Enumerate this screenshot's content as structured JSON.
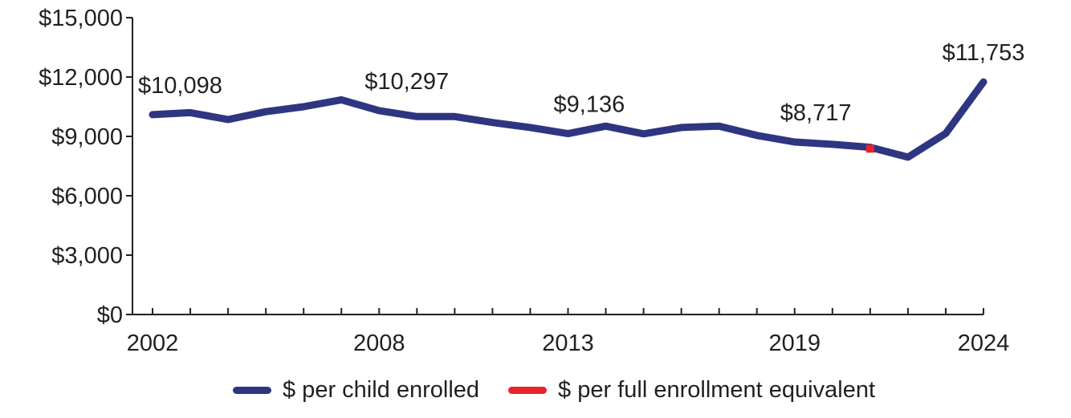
{
  "chart_data": {
    "type": "line",
    "title": "",
    "xlabel": "",
    "ylabel": "",
    "ylim": [
      0,
      15000
    ],
    "xlim": [
      2002,
      2024
    ],
    "y_ticks": [
      "$0",
      "$3,000",
      "$6,000",
      "$9,000",
      "$12,000",
      "$15,000"
    ],
    "y_tick_values": [
      0,
      3000,
      6000,
      9000,
      12000,
      15000
    ],
    "x_tick_labels": [
      "2002",
      "2008",
      "2013",
      "2019",
      "2024"
    ],
    "x_tick_values": [
      2002,
      2008,
      2013,
      2019,
      2024
    ],
    "grid": false,
    "legend_position": "bottom",
    "series": [
      {
        "name": "$ per child enrolled",
        "color": "#2e3681",
        "x": [
          2002,
          2003,
          2004,
          2005,
          2006,
          2007,
          2008,
          2009,
          2010,
          2011,
          2012,
          2013,
          2014,
          2015,
          2016,
          2017,
          2018,
          2019,
          2020,
          2021,
          2022,
          2023,
          2024
        ],
        "values": [
          10098,
          10200,
          9850,
          10250,
          10500,
          10850,
          10300,
          10000,
          10000,
          9700,
          9450,
          9136,
          9520,
          9130,
          9450,
          9520,
          9050,
          8717,
          8600,
          8450,
          7950,
          9150,
          11753
        ]
      },
      {
        "name": "$ per full enrollment equivalent",
        "color": "#e8232a",
        "x": [
          2021
        ],
        "values": [
          8380
        ]
      }
    ],
    "annotations": [
      {
        "x": 2002,
        "y": 10098,
        "text": "$10,098"
      },
      {
        "x": 2008,
        "y": 10297,
        "text": "$10,297"
      },
      {
        "x": 2013,
        "y": 9136,
        "text": "$9,136"
      },
      {
        "x": 2019,
        "y": 8717,
        "text": "$8,717"
      },
      {
        "x": 2024,
        "y": 11753,
        "text": "$11,753"
      }
    ]
  }
}
